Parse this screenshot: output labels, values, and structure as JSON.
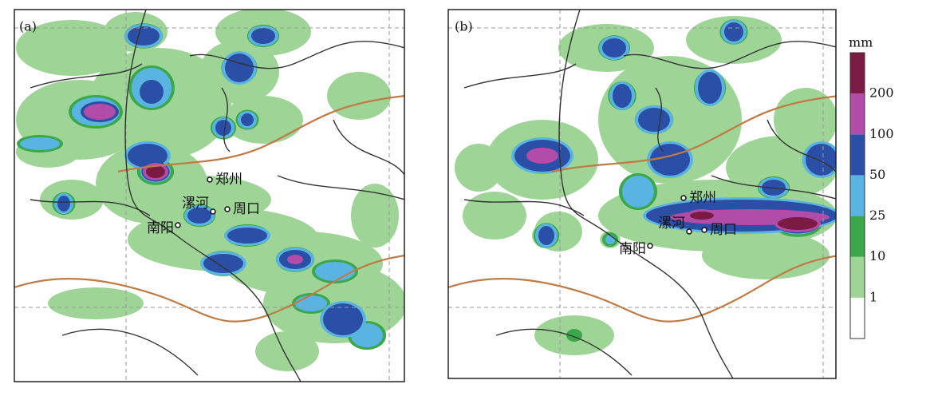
{
  "panels": [
    {
      "label": "(a)",
      "cities": [
        "郑州",
        "漯河",
        "周口",
        "南阳"
      ]
    },
    {
      "label": "(b)",
      "cities": [
        "郑州",
        "漯河",
        "周口",
        "南阳"
      ]
    }
  ],
  "legend": {
    "unit": "mm",
    "ticks": [
      1,
      10,
      25,
      50,
      100,
      200
    ],
    "colors": [
      "#ffffff",
      "#9ed596",
      "#3aa84a",
      "#5ab4e2",
      "#2b4fa6",
      "#b14ca9",
      "#7b1a42"
    ]
  }
}
